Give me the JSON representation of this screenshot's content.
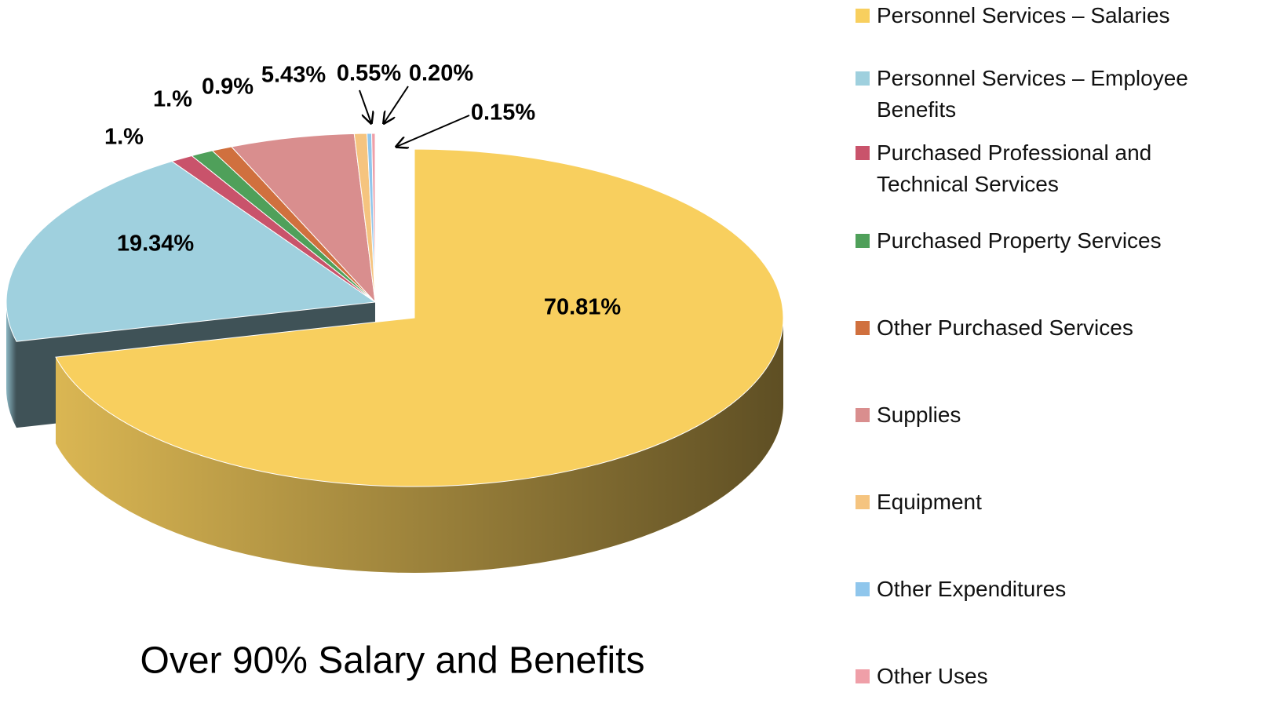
{
  "chart_data": {
    "type": "pie",
    "title": "Over 90% Salary and Benefits",
    "legend": "right",
    "categories": [
      "Personnel Services – Salaries",
      "Personnel Services – Employee Benefits",
      "Purchased Professional and Technical Services",
      "Purchased Property Services",
      "Other Purchased Services",
      "Supplies",
      "Equipment",
      "Other Expenditures",
      "Other Uses"
    ],
    "values": [
      70.81,
      19.34,
      1,
      1,
      0.9,
      5.43,
      0.55,
      0.2,
      0.15
    ],
    "value_labels": [
      "70.81%",
      "19.34%",
      "1.%",
      "1.%",
      "0.9%",
      "5.43%",
      "0.55%",
      "0.20%",
      "0.15%"
    ],
    "colors": [
      "#f8cf5e",
      "#9fd0de",
      "#c9536b",
      "#4fa05a",
      "#d0703e",
      "#d98e8e",
      "#f5c47f",
      "#8fc6ec",
      "#ef9fa8"
    ]
  }
}
